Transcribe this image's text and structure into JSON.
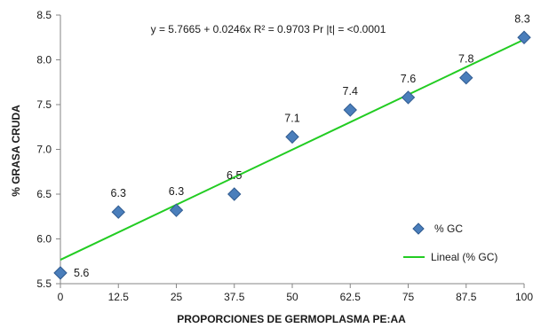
{
  "chart_data": {
    "type": "scatter",
    "xlabel": "PROPORCIONES DE GERMOPLASMA PE:AA",
    "ylabel": "% GRASA CRUDA",
    "equation": "y = 5.7665 + 0.0246x    R² = 0.9703   Pr |t| = <0.0001",
    "xlim": [
      0,
      100
    ],
    "ylim": [
      5.5,
      8.5
    ],
    "x_ticks": [
      "0",
      "12.5",
      "25",
      "37.5",
      "50",
      "62.5",
      "75",
      "87.5",
      "100"
    ],
    "y_ticks": [
      "5.5",
      "6.0",
      "6.5",
      "7.0",
      "7.5",
      "8.0",
      "8.5"
    ],
    "grid": false,
    "legend_position": "bottom-right",
    "series": [
      {
        "name": "% GC",
        "marker": "diamond",
        "color": "#4a7ebb",
        "x": [
          0,
          12.5,
          25,
          37.5,
          50,
          62.5,
          75,
          87.5,
          100
        ],
        "y": [
          5.62,
          6.3,
          6.32,
          6.5,
          7.14,
          7.44,
          7.58,
          7.8,
          8.25
        ],
        "labels": [
          "5.6",
          "6.3",
          "6.3",
          "6.5",
          "7.1",
          "7.4",
          "7.6",
          "7.8",
          "8.3"
        ]
      }
    ],
    "trendline": {
      "name": "Lineal (% GC)",
      "color": "#22cc22",
      "intercept": 5.7665,
      "slope": 0.0246
    }
  }
}
